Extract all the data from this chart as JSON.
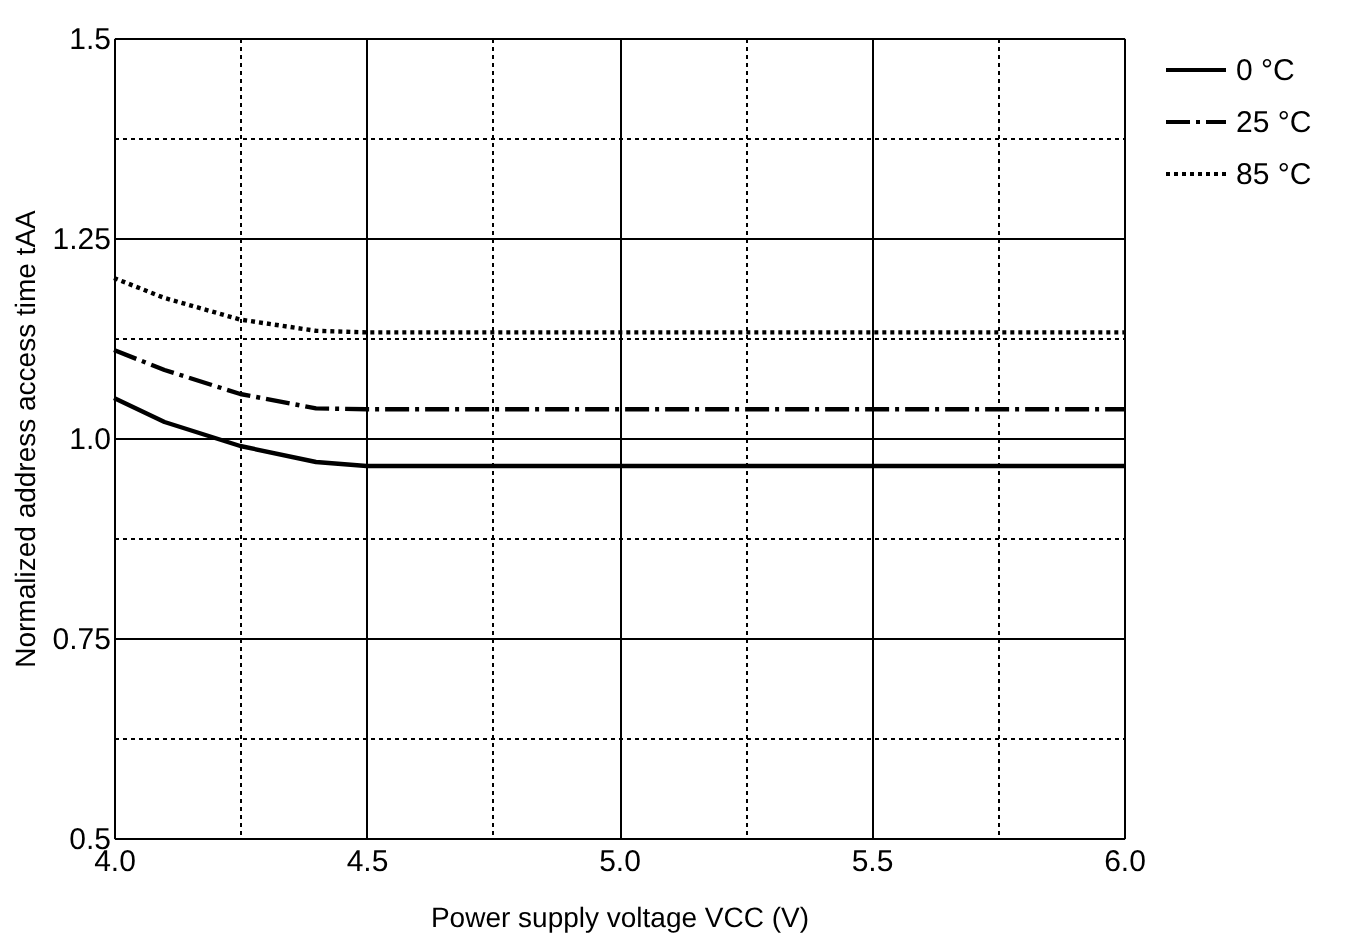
{
  "chart_data": {
    "type": "line",
    "xlabel": "Power supply voltage VCC (V)",
    "ylabel": "Normalized address access time tAA",
    "x": [
      4.0,
      4.1,
      4.25,
      4.4,
      4.5,
      5.0,
      5.5,
      6.0
    ],
    "series": [
      {
        "name": "0 °C",
        "color": "#000000",
        "line_style": "solid",
        "values": [
          1.05,
          1.02,
          0.99,
          0.97,
          0.965,
          0.965,
          0.965,
          0.965
        ]
      },
      {
        "name": "25 °C",
        "color": "#000000",
        "line_style": "dashed",
        "values": [
          1.11,
          1.085,
          1.055,
          1.037,
          1.036,
          1.036,
          1.036,
          1.036
        ]
      },
      {
        "name": "85 °C",
        "color": "#000000",
        "line_style": "dotted",
        "values": [
          1.2,
          1.175,
          1.148,
          1.134,
          1.132,
          1.132,
          1.132,
          1.132
        ]
      }
    ],
    "xlim": [
      4.0,
      6.0
    ],
    "xticks": [
      {
        "value": 4.0,
        "label": "4.0"
      },
      {
        "value": 4.25,
        "label": null
      },
      {
        "value": 4.5,
        "label": "4.5"
      },
      {
        "value": 4.75,
        "label": null
      },
      {
        "value": 5.0,
        "label": "5.0"
      },
      {
        "value": 5.25,
        "label": null
      },
      {
        "value": 5.5,
        "label": "5.5"
      },
      {
        "value": 5.75,
        "label": null
      },
      {
        "value": 6.0,
        "label": "6.0"
      }
    ],
    "ylim": [
      0.5,
      1.5
    ],
    "yticks": [
      0.5,
      {
        "value": 0.625,
        "label": null
      },
      0.75,
      {
        "value": 0.875,
        "label": null
      },
      {
        "value": 1.0,
        "label": "1.0"
      },
      {
        "value": 1.125,
        "label": null
      },
      1.25,
      {
        "value": 1.375,
        "label": null
      },
      1.5
    ],
    "grid": true,
    "legend": "top right",
    "marker": "none"
  }
}
